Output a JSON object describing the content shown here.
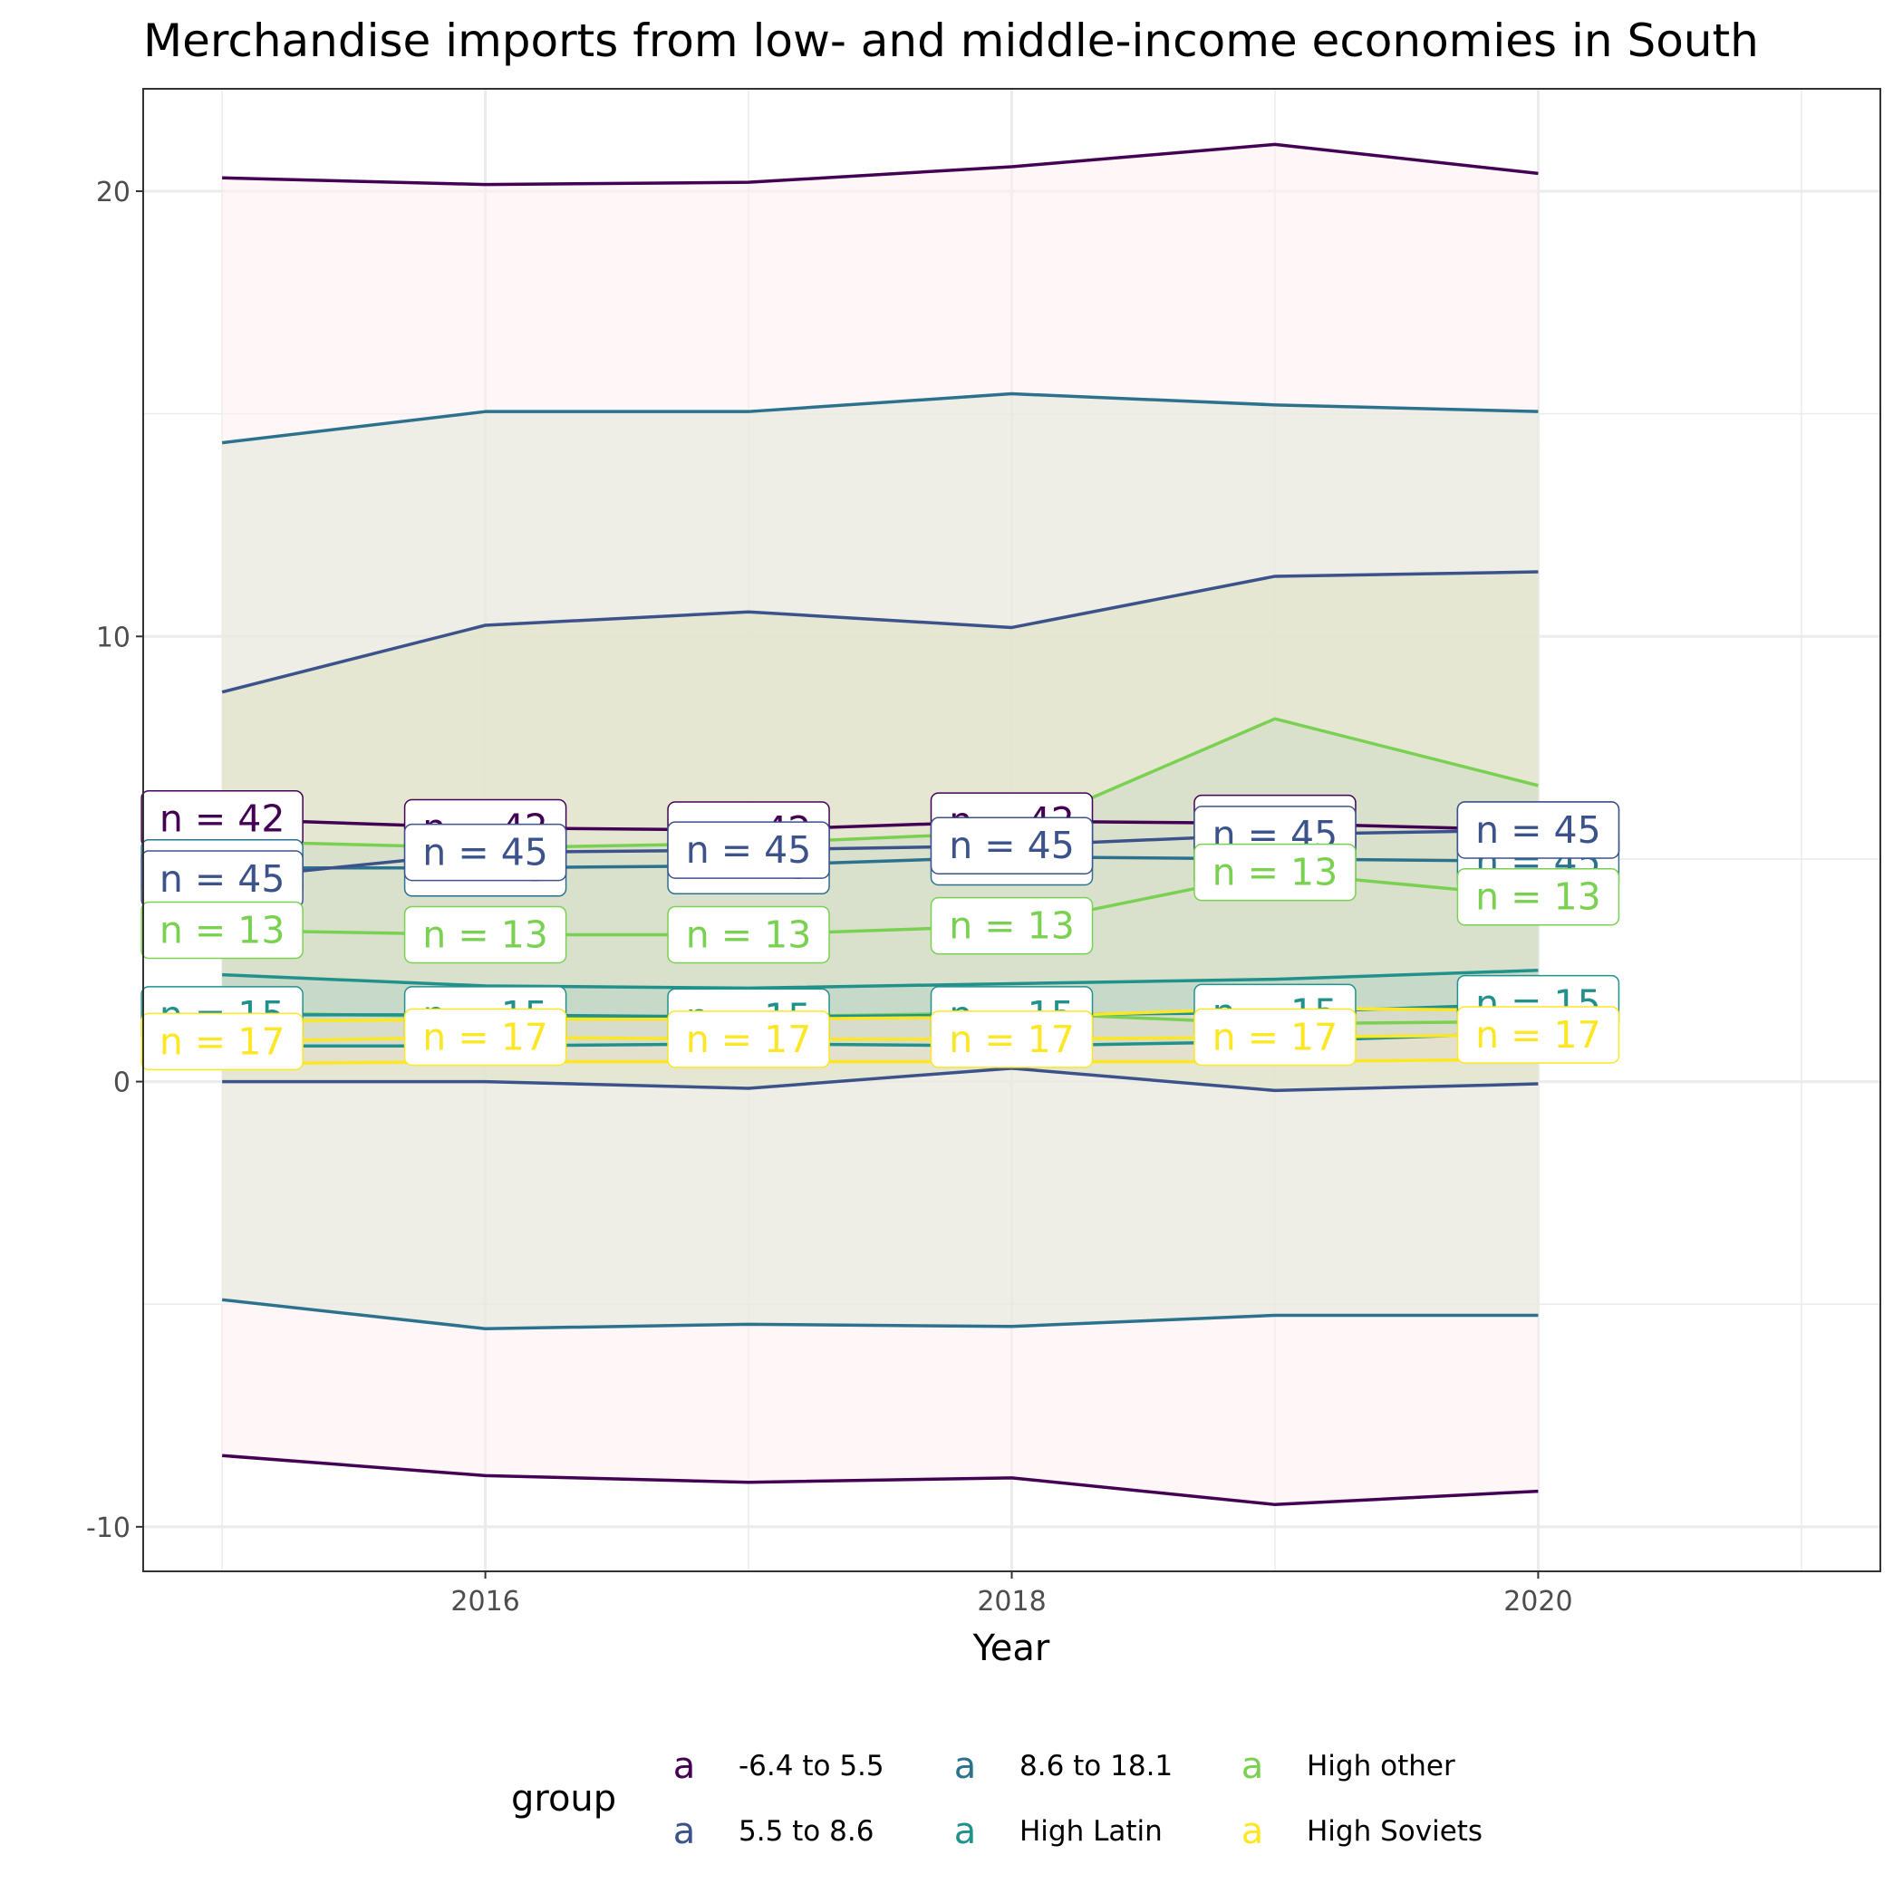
{
  "chart_data": {
    "type": "area",
    "title": "Merchandise imports from low- and middle-income economies in South",
    "xlabel": "Year",
    "ylabel": "",
    "x": [
      2015,
      2016,
      2017,
      2018,
      2019,
      2020
    ],
    "xlim": [
      2014.7,
      2021.3
    ],
    "ylim": [
      -11,
      22.3
    ],
    "x_ticks": [
      2016,
      2018,
      2020
    ],
    "x_tick_labels": [
      "2016",
      "2018",
      "2020"
    ],
    "y_ticks": [
      -10,
      0,
      10,
      20
    ],
    "y_tick_labels": [
      "-10",
      "0",
      "10",
      "20"
    ],
    "grid": true,
    "legend": {
      "title": "group",
      "position": "bottom",
      "key_glyph": "a",
      "entries": [
        "-6.4 to 5.5",
        "5.5 to 8.6",
        "8.6 to 18.1",
        "High Latin",
        "High other",
        "High Soviets"
      ]
    },
    "series": [
      {
        "name": "-6.4 to 5.5",
        "color": "#440154",
        "fill": "#fff1f0",
        "n_label": "n = 42",
        "upper": [
          20.3,
          20.15,
          20.2,
          20.55,
          21.05,
          20.4
        ],
        "mid": [
          5.9,
          5.7,
          5.65,
          5.85,
          5.8,
          5.65
        ],
        "lower": [
          -8.4,
          -8.85,
          -9.0,
          -8.9,
          -9.5,
          -9.2
        ]
      },
      {
        "name": "5.5 to 8.6",
        "color": "#3b528b",
        "fill": "#dde1c3",
        "n_label": "n = 45",
        "upper": [
          8.75,
          10.25,
          10.55,
          10.2,
          11.35,
          11.45
        ],
        "mid": [
          4.55,
          5.15,
          5.2,
          5.3,
          5.55,
          5.65
        ],
        "lower": [
          0.0,
          0.0,
          -0.15,
          0.3,
          -0.2,
          -0.05
        ]
      },
      {
        "name": "8.6 to 18.1",
        "color": "#2c728e",
        "fill": "#e2e8d8",
        "n_label": "n = 45",
        "upper": [
          14.35,
          15.05,
          15.05,
          15.45,
          15.2,
          15.05
        ],
        "mid": [
          4.8,
          4.8,
          4.85,
          5.05,
          5.0,
          4.95
        ],
        "lower": [
          -4.9,
          -5.55,
          -5.45,
          -5.5,
          -5.25,
          -5.25
        ]
      },
      {
        "name": "High Latin",
        "color": "#21918c",
        "fill": "#b8d6c8",
        "n_label": "n = 15",
        "upper": [
          2.4,
          2.15,
          2.1,
          2.2,
          2.3,
          2.5
        ],
        "mid": [
          1.5,
          1.5,
          1.45,
          1.5,
          1.55,
          1.75
        ],
        "lower": [
          0.8,
          0.8,
          0.85,
          0.8,
          0.9,
          1.1
        ]
      },
      {
        "name": "High other",
        "color": "#7ad151",
        "fill": "#cfdcc9",
        "n_label": "n = 13",
        "upper": [
          5.4,
          5.25,
          5.35,
          5.6,
          8.15,
          6.65
        ],
        "mid": [
          3.4,
          3.3,
          3.3,
          3.5,
          4.7,
          4.15
        ],
        "lower": [
          1.55,
          1.45,
          1.45,
          1.55,
          1.3,
          1.35
        ]
      },
      {
        "name": "High Soviets",
        "color": "#fde725",
        "fill": "#e2dccb",
        "n_label": "n = 17",
        "upper": [
          1.35,
          1.4,
          1.4,
          1.45,
          1.65,
          1.6
        ],
        "mid": [
          0.9,
          1.0,
          0.95,
          0.95,
          1.0,
          1.05
        ],
        "lower": [
          0.4,
          0.45,
          0.45,
          0.45,
          0.45,
          0.5
        ]
      }
    ]
  }
}
